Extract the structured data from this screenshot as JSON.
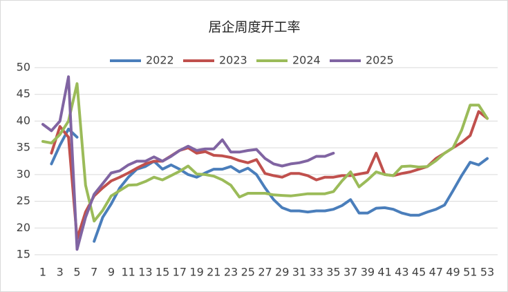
{
  "chart_data": {
    "type": "line",
    "title": "居企周度开工率",
    "x": [
      1,
      2,
      3,
      4,
      5,
      6,
      7,
      8,
      9,
      10,
      11,
      12,
      13,
      14,
      15,
      16,
      17,
      18,
      19,
      20,
      21,
      22,
      23,
      24,
      25,
      26,
      27,
      28,
      29,
      30,
      31,
      32,
      33,
      34,
      35,
      36,
      37,
      38,
      39,
      40,
      41,
      42,
      43,
      44,
      45,
      46,
      47,
      48,
      49,
      50,
      51,
      52,
      53
    ],
    "xlim": [
      1,
      53
    ],
    "xticks": [
      1,
      3,
      5,
      7,
      9,
      11,
      13,
      15,
      17,
      19,
      21,
      23,
      25,
      27,
      29,
      31,
      33,
      35,
      37,
      39,
      41,
      43,
      45,
      47,
      49,
      51,
      53
    ],
    "ylim": [
      15,
      50
    ],
    "yticks": [
      15,
      20,
      25,
      30,
      35,
      40,
      45,
      50
    ],
    "grid": true,
    "legend": "top",
    "series": [
      {
        "name": "2022",
        "color": "#4a7ebb",
        "values": [
          null,
          32,
          35.5,
          38.5,
          37,
          null,
          17.5,
          22,
          24.5,
          27.5,
          29.5,
          31,
          31.5,
          32.5,
          31,
          31.8,
          31,
          30,
          29.5,
          30.3,
          31,
          31,
          31.5,
          30.5,
          31.2,
          30,
          27.5,
          25.3,
          23.8,
          23.2,
          23.2,
          23,
          23.2,
          23.2,
          23.5,
          24.2,
          25.3,
          22.8,
          22.8,
          23.7,
          23.8,
          23.5,
          22.8,
          22.4,
          22.4,
          23,
          23.5,
          24.3,
          27,
          29.8,
          32.3,
          31.8,
          33
        ]
      },
      {
        "name": "2023",
        "color": "#c0504d",
        "values": [
          null,
          34,
          39,
          37,
          18,
          23,
          26,
          27.5,
          28.8,
          29.5,
          30.3,
          31.2,
          32,
          32.5,
          32.5,
          33.5,
          34.5,
          35,
          34,
          34.3,
          33.6,
          33.5,
          33.2,
          32.6,
          32.2,
          32.8,
          30.2,
          29.8,
          29.5,
          30.2,
          30.2,
          29.8,
          29,
          29.5,
          29.5,
          29.8,
          29.8,
          30.1,
          30.4,
          34,
          30,
          29.8,
          30.2,
          30.5,
          31,
          31.5,
          33,
          34,
          35,
          36,
          37.3,
          41.8,
          40.5
        ]
      },
      {
        "name": "2024",
        "color": "#9bbb59",
        "values": [
          36.2,
          35.9,
          37.5,
          40,
          47,
          28,
          21.3,
          23.3,
          26,
          27,
          28,
          28.1,
          28.7,
          29.5,
          29,
          29.8,
          30.6,
          31.6,
          30.1,
          30,
          29.7,
          29,
          28,
          25.8,
          26.5,
          26.5,
          26.5,
          26.2,
          26.1,
          26,
          26.2,
          26.4,
          26.4,
          26.4,
          26.8,
          28.8,
          30.5,
          27.7,
          29,
          30.5,
          30,
          29.8,
          31.5,
          31.6,
          31.4,
          31.5,
          32.6,
          34,
          35,
          38.3,
          43,
          43,
          40.5
        ]
      },
      {
        "name": "2025",
        "color": "#8064a2",
        "values": [
          39.4,
          38.2,
          40,
          48.3,
          16,
          22,
          26.3,
          28.3,
          30.3,
          30.7,
          31.8,
          32.5,
          32.5,
          33.3,
          32.5,
          33.4,
          34.5,
          35.3,
          34.5,
          34.8,
          34.8,
          36.5,
          34.2,
          34.2,
          34.5,
          34.7,
          33,
          32,
          31.6,
          32,
          32.2,
          32.6,
          33.4,
          33.4,
          34,
          null,
          null,
          null,
          null,
          null,
          null,
          null,
          null,
          null,
          null,
          null,
          null,
          null,
          null,
          null,
          null,
          null,
          null
        ]
      }
    ]
  }
}
